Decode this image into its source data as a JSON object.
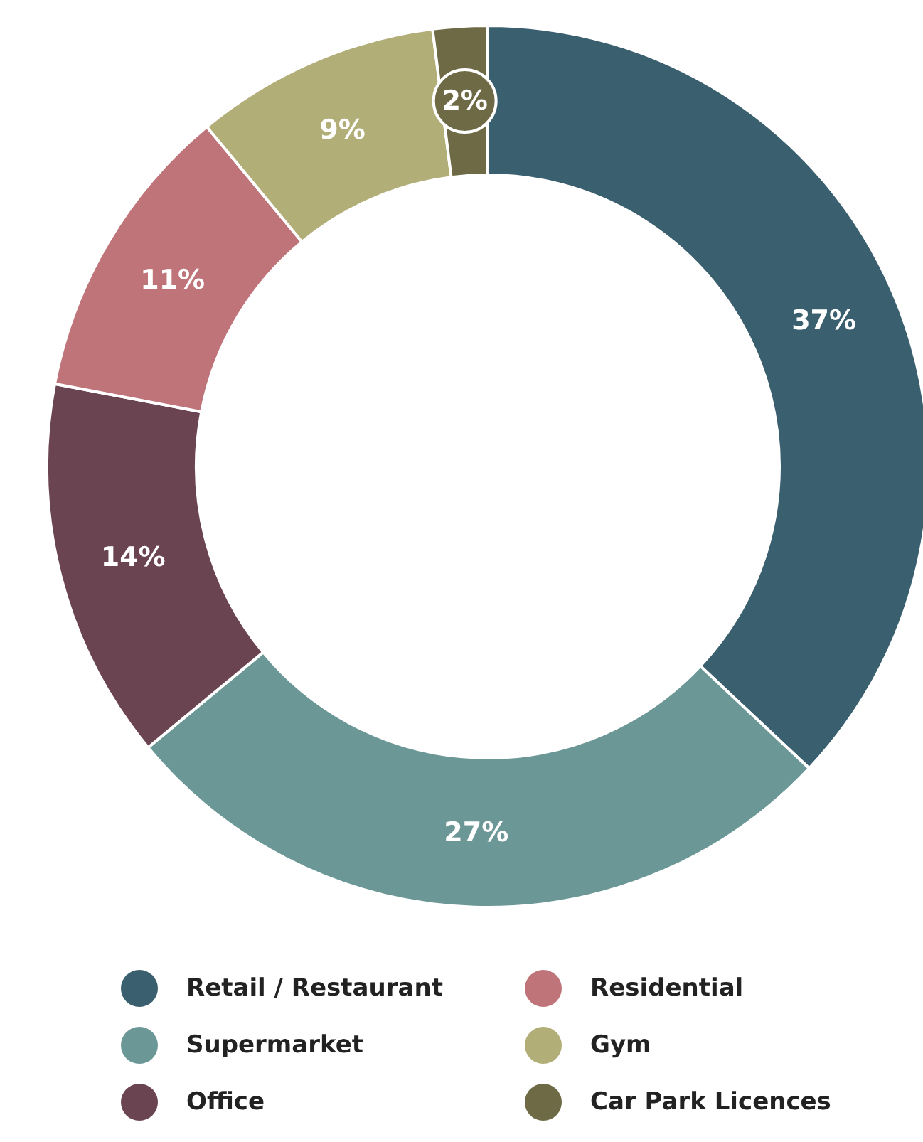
{
  "chart_data": {
    "type": "donut",
    "categories": [
      "Retail / Restaurant",
      "Supermarket",
      "Office",
      "Residential",
      "Gym",
      "Car Park Licences"
    ],
    "values": [
      37,
      27,
      14,
      11,
      9,
      2
    ],
    "colors": [
      "#3a5f6e",
      "#6b9896",
      "#6b4452",
      "#bf7479",
      "#b1ae78",
      "#6e6a45"
    ],
    "value_labels": [
      "37%",
      "27%",
      "14%",
      "11%",
      "9%",
      "2%"
    ],
    "legend": "bottom"
  }
}
